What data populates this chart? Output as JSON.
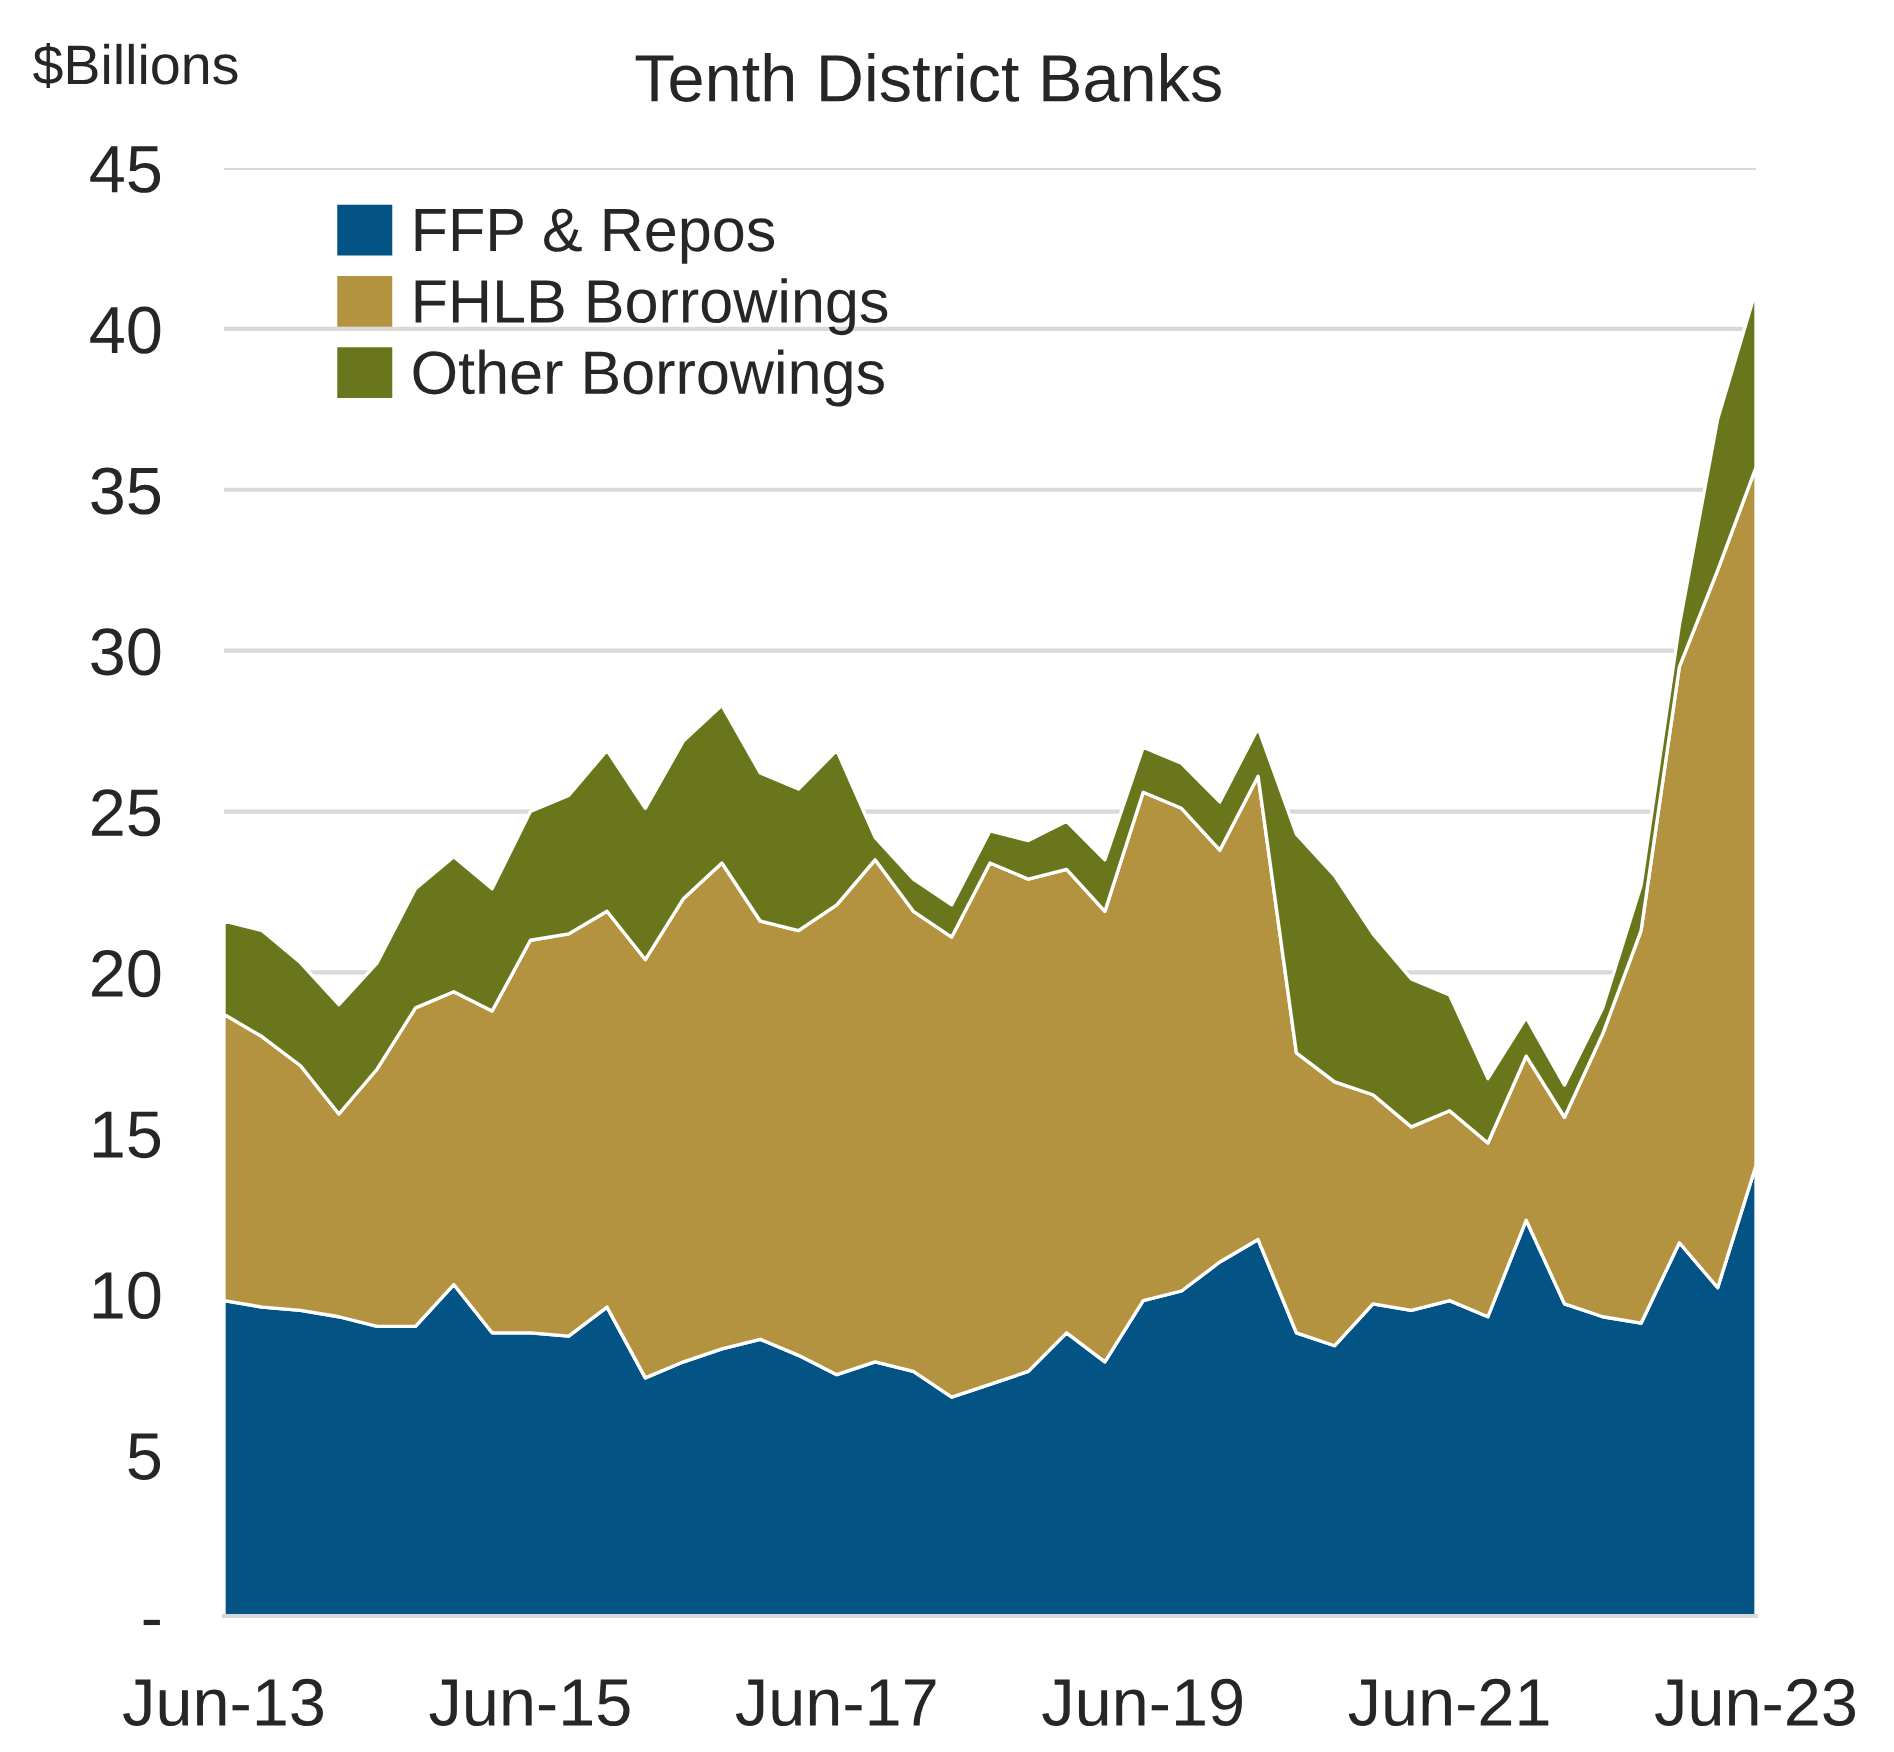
{
  "chart_data": {
    "type": "area",
    "stacked": true,
    "title": "Tenth District Banks",
    "ylabel": "$Billions",
    "categories": [
      "Jun-13",
      null,
      null,
      null,
      null,
      null,
      null,
      null,
      "Jun-15",
      null,
      null,
      null,
      null,
      null,
      null,
      null,
      "Jun-17",
      null,
      null,
      null,
      null,
      null,
      null,
      null,
      "Jun-19",
      null,
      null,
      null,
      null,
      null,
      null,
      null,
      "Jun-21",
      null,
      null,
      null,
      null,
      null,
      null,
      null,
      "Jun-23"
    ],
    "series": [
      {
        "name": "FFP & Repos",
        "color": "#035484",
        "values": [
          9.8,
          9.6,
          9.5,
          9.3,
          9.0,
          9.0,
          10.3,
          8.8,
          8.8,
          8.7,
          9.6,
          7.4,
          7.9,
          8.3,
          8.6,
          8.1,
          7.5,
          7.9,
          7.6,
          6.8,
          7.2,
          7.6,
          8.8,
          7.9,
          9.8,
          10.1,
          11.0,
          11.7,
          8.8,
          8.4,
          9.7,
          9.5,
          9.8,
          9.3,
          12.3,
          9.7,
          9.3,
          9.1,
          11.6,
          10.2,
          14.0
        ]
      },
      {
        "name": "FHLB Borrowings",
        "color": "#b3933f",
        "values": [
          8.9,
          8.4,
          7.6,
          6.3,
          8.0,
          9.9,
          9.1,
          10.0,
          12.2,
          12.5,
          12.3,
          13.0,
          14.4,
          15.1,
          13.0,
          13.2,
          14.6,
          15.6,
          14.3,
          14.3,
          16.2,
          15.3,
          14.4,
          14.0,
          15.8,
          15.0,
          12.8,
          14.4,
          8.7,
          8.2,
          6.5,
          5.7,
          5.9,
          5.4,
          5.1,
          5.8,
          8.8,
          12.2,
          17.9,
          22.3,
          21.7
        ]
      },
      {
        "name": "Other Borrowings",
        "color": "#69761b",
        "values": [
          2.9,
          3.3,
          3.2,
          3.4,
          3.3,
          3.7,
          4.2,
          3.8,
          4.0,
          4.3,
          5.0,
          4.7,
          4.9,
          4.9,
          4.6,
          4.4,
          4.8,
          0.7,
          1.0,
          1.0,
          1.0,
          1.2,
          1.5,
          1.6,
          1.4,
          1.4,
          1.5,
          1.5,
          6.8,
          6.4,
          5.0,
          4.6,
          3.6,
          2.0,
          1.2,
          1.0,
          0.8,
          1.4,
          1.3,
          4.7,
          5.5
        ]
      }
    ],
    "ylim": [
      0,
      45
    ],
    "yticks": [
      {
        "value": 0,
        "label": "-"
      },
      5,
      10,
      15,
      20,
      25,
      30,
      35,
      40,
      45
    ],
    "grid": "y",
    "legend": "top left"
  }
}
